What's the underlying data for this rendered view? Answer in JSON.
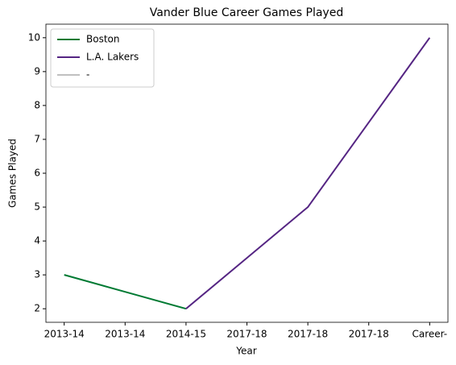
{
  "chart_data": {
    "type": "line",
    "title": "Vander Blue Career Games Played",
    "x_label": "Year",
    "y_label": "Games Played",
    "categories": [
      "2013-14",
      "2013-14",
      "2014-15",
      "2017-18",
      "2017-18",
      "2017-18",
      "Career-"
    ],
    "series": [
      {
        "name": "Boston",
        "color": "#007a33",
        "values": [
          3,
          2.5,
          2,
          null,
          null,
          null,
          null
        ]
      },
      {
        "name": "L.A. Lakers",
        "color": "#552583",
        "values": [
          null,
          null,
          2,
          3.5,
          5,
          7.5,
          10
        ]
      },
      {
        "name": "-",
        "color": "#c0c0c0",
        "values": [
          null,
          null,
          null,
          null,
          null,
          null,
          null
        ]
      }
    ],
    "ylim": [
      1.6,
      10.4
    ],
    "yticks": [
      2,
      3,
      4,
      5,
      6,
      7,
      8,
      9,
      10
    ],
    "legend": "upper left",
    "grid": false
  }
}
